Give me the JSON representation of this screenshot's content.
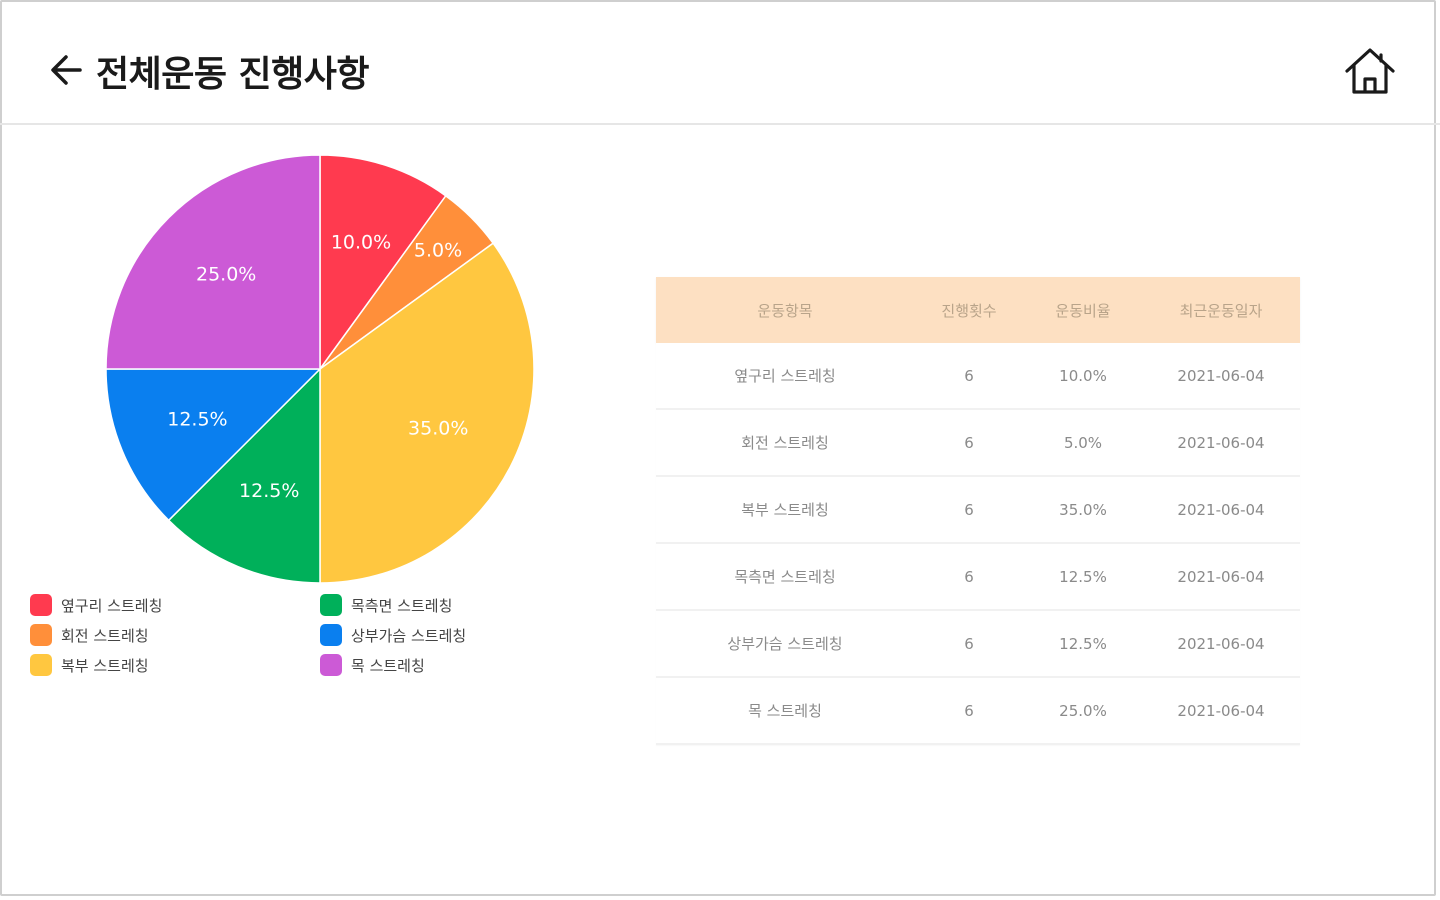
{
  "header": {
    "title": "전체운동 진행사항",
    "back_icon": "arrow-left-icon",
    "home_icon": "home-icon"
  },
  "chart_data": {
    "type": "pie",
    "labels": [
      "옆구리 스트레칭",
      "회전 스트레칭",
      "복부 스트레칭",
      "목측면 스트레칭",
      "상부가슴 스트레칭",
      "목 스트레칭"
    ],
    "values": [
      10.0,
      5.0,
      35.0,
      12.5,
      12.5,
      25.0
    ],
    "slice_labels": [
      "10.0%",
      "5.0%",
      "35.0%",
      "12.5%",
      "12.5%",
      "25.0%"
    ],
    "colors": [
      "#ff3a4f",
      "#ff8f3a",
      "#ffc740",
      "#00b05a",
      "#0a7fef",
      "#cc5ad6"
    ],
    "legend_placement": "bottom",
    "start_angle": "top",
    "direction": "clockwise"
  },
  "legend": {
    "items": [
      {
        "label": "옆구리 스트레칭",
        "color": "#ff3a4f"
      },
      {
        "label": "목측면 스트레칭",
        "color": "#00b05a"
      },
      {
        "label": "회전 스트레칭",
        "color": "#ff8f3a"
      },
      {
        "label": "상부가슴 스트레칭",
        "color": "#0a7fef"
      },
      {
        "label": "복부 스트레칭",
        "color": "#ffc740"
      },
      {
        "label": "목 스트레칭",
        "color": "#cc5ad6"
      }
    ]
  },
  "table": {
    "headers": [
      "운동항목",
      "진행횟수",
      "운동비율",
      "최근운동일자"
    ],
    "rows": [
      [
        "옆구리 스트레칭",
        "6",
        "10.0%",
        "2021-06-04"
      ],
      [
        "회전 스트레칭",
        "6",
        "5.0%",
        "2021-06-04"
      ],
      [
        "복부 스트레칭",
        "6",
        "35.0%",
        "2021-06-04"
      ],
      [
        "목측면 스트레칭",
        "6",
        "12.5%",
        "2021-06-04"
      ],
      [
        "상부가슴 스트레칭",
        "6",
        "12.5%",
        "2021-06-04"
      ],
      [
        "목 스트레칭",
        "6",
        "25.0%",
        "2021-06-04"
      ]
    ],
    "header_color": "#fde0c2"
  }
}
